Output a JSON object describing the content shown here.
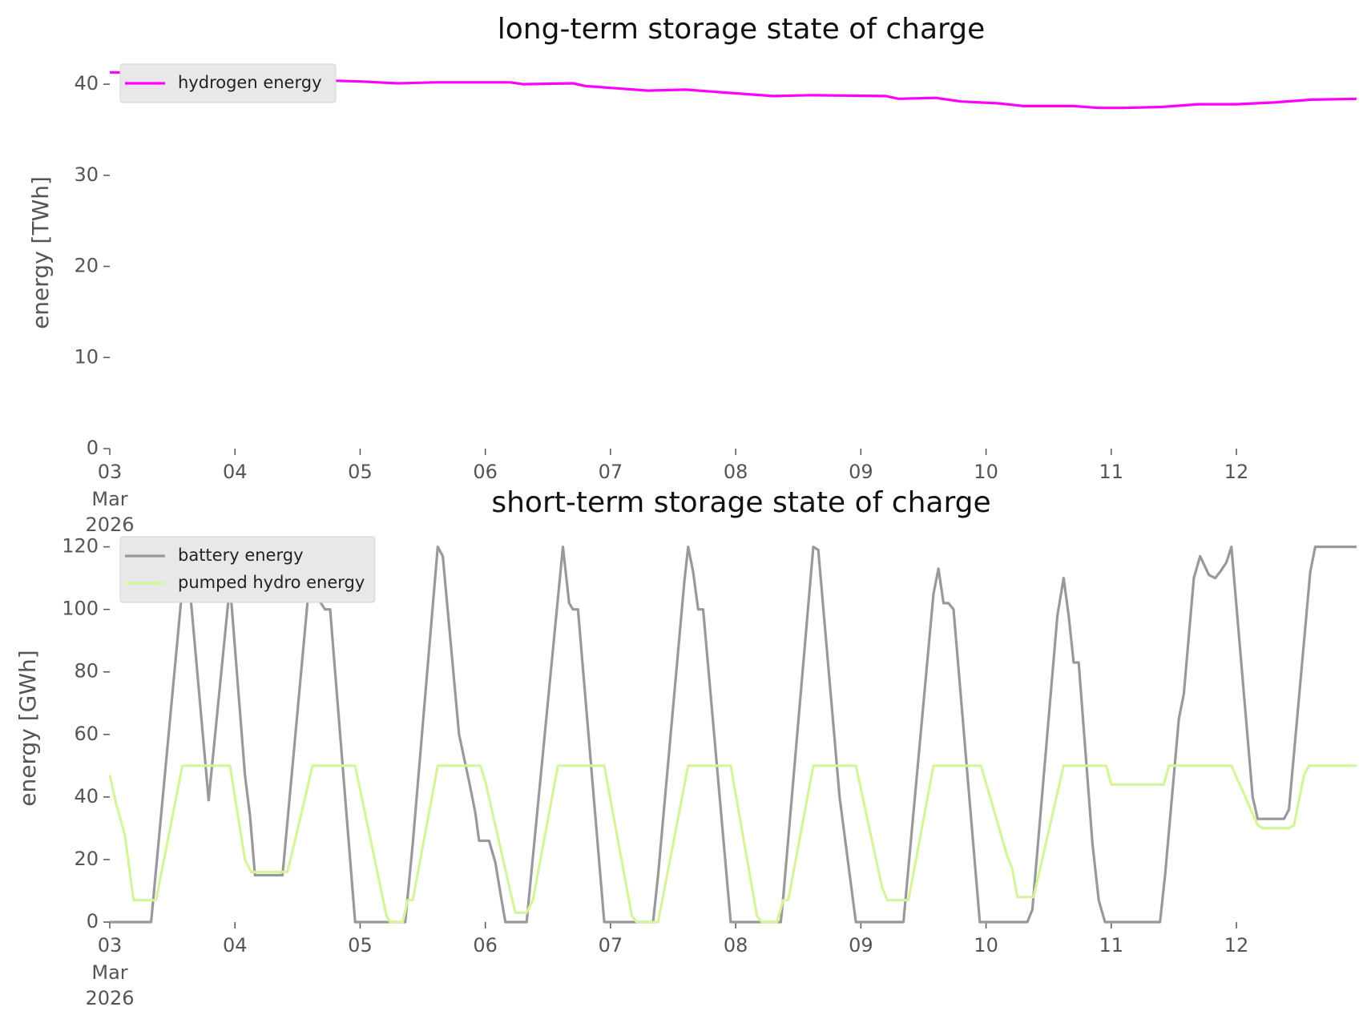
{
  "chart_data": [
    {
      "type": "line",
      "title": "long-term storage state of charge",
      "ylabel": "energy [TWh]",
      "xlim": [
        3,
        12.96
      ],
      "ylim": [
        0,
        43
      ],
      "yticks": [
        0,
        10,
        20,
        30,
        40
      ],
      "xticks": [
        {
          "value": 3,
          "label": "03"
        },
        {
          "value": 4,
          "label": "04"
        },
        {
          "value": 5,
          "label": "05"
        },
        {
          "value": 6,
          "label": "06"
        },
        {
          "value": 7,
          "label": "07"
        },
        {
          "value": 8,
          "label": "08"
        },
        {
          "value": 9,
          "label": "09"
        },
        {
          "value": 10,
          "label": "10"
        },
        {
          "value": 11,
          "label": "11"
        },
        {
          "value": 12,
          "label": "12"
        }
      ],
      "xtick_sublabel": [
        "Mar",
        "2026"
      ],
      "legend": "upper left",
      "grid": false,
      "series": [
        {
          "name": "hydrogen energy",
          "color": "#ff00ff",
          "x": [
            3,
            3.5,
            4,
            4.5,
            5,
            5.3,
            5.6,
            6.2,
            6.3,
            6.7,
            6.8,
            7.1,
            7.3,
            7.6,
            8,
            8.3,
            8.6,
            9.2,
            9.3,
            9.6,
            9.8,
            10.1,
            10.3,
            10.7,
            10.9,
            11.1,
            11.4,
            11.7,
            12,
            12.3,
            12.6,
            12.96
          ],
          "values": [
            41.3,
            41.2,
            40.8,
            40.5,
            40.3,
            40.1,
            40.2,
            40.2,
            40.0,
            40.1,
            39.8,
            39.5,
            39.3,
            39.4,
            39.0,
            38.7,
            38.8,
            38.7,
            38.4,
            38.5,
            38.1,
            37.9,
            37.6,
            37.6,
            37.4,
            37.4,
            37.5,
            37.8,
            37.8,
            38.0,
            38.3,
            38.4
          ]
        }
      ]
    },
    {
      "type": "line",
      "title": "short-term storage state of charge",
      "ylabel": "energy [GWh]",
      "xlim": [
        3,
        12.96
      ],
      "ylim": [
        0,
        124
      ],
      "yticks": [
        0,
        20,
        40,
        60,
        80,
        100,
        120
      ],
      "xticks": [
        {
          "value": 3,
          "label": "03"
        },
        {
          "value": 4,
          "label": "04"
        },
        {
          "value": 5,
          "label": "05"
        },
        {
          "value": 6,
          "label": "06"
        },
        {
          "value": 7,
          "label": "07"
        },
        {
          "value": 8,
          "label": "08"
        },
        {
          "value": 9,
          "label": "09"
        },
        {
          "value": 10,
          "label": "10"
        },
        {
          "value": 11,
          "label": "11"
        },
        {
          "value": 12,
          "label": "12"
        }
      ],
      "xtick_sublabel": [
        "Mar",
        "2026"
      ],
      "legend": "upper left",
      "grid": false,
      "series": [
        {
          "name": "battery energy",
          "color": "#999999",
          "x": [
            3,
            3.33,
            3.61,
            3.79,
            3.96,
            4.08,
            4.12,
            4.16,
            4.38,
            4.62,
            4.67,
            4.72,
            4.76,
            4.96,
            5.36,
            5.42,
            5.62,
            5.66,
            5.79,
            5.87,
            5.92,
            5.95,
            6.03,
            6.08,
            6.13,
            6.16,
            6.33,
            6.62,
            6.67,
            6.7,
            6.74,
            6.95,
            7.34,
            7.38,
            7.59,
            7.62,
            7.66,
            7.7,
            7.74,
            7.96,
            8.36,
            8.38,
            8.62,
            8.66,
            8.83,
            8.96,
            9.34,
            9.58,
            9.62,
            9.66,
            9.7,
            9.74,
            9.95,
            10.33,
            10.37,
            10.57,
            10.62,
            10.66,
            10.7,
            10.74,
            10.85,
            10.9,
            10.95,
            11.39,
            11.43,
            11.54,
            11.58,
            11.66,
            11.71,
            11.78,
            11.83,
            11.87,
            11.92,
            11.96,
            12.13,
            12.17,
            12.38,
            12.42,
            12.59,
            12.63,
            12.96
          ],
          "values": [
            0,
            0,
            120,
            39,
            108,
            47,
            34,
            15,
            15,
            120,
            103,
            100,
            100,
            0,
            0,
            25,
            120,
            117,
            60,
            45,
            35,
            26,
            26,
            19,
            7,
            0,
            0,
            120,
            102,
            100,
            100,
            0,
            0,
            15,
            109,
            120,
            112,
            100,
            100,
            0,
            0,
            8,
            120,
            119,
            40,
            0,
            0,
            105,
            113,
            102,
            102,
            100,
            0,
            0,
            4,
            98,
            110,
            98,
            83,
            83,
            25,
            7,
            0,
            0,
            15,
            65,
            73,
            110,
            117,
            111,
            110,
            112,
            115,
            120,
            40,
            33,
            33,
            36,
            112,
            120,
            120
          ]
        },
        {
          "name": "pumped hydro energy",
          "color": "#d4f59a",
          "x": [
            3,
            3.05,
            3.12,
            3.19,
            3.37,
            3.58,
            3.96,
            4.08,
            4.13,
            4.42,
            4.62,
            4.96,
            5.21,
            5.24,
            5.34,
            5.38,
            5.42,
            5.62,
            5.96,
            6.0,
            6.21,
            6.24,
            6.33,
            6.38,
            6.58,
            6.95,
            7.17,
            7.21,
            7.38,
            7.62,
            7.96,
            8.17,
            8.21,
            8.33,
            8.38,
            8.42,
            8.62,
            8.96,
            9.17,
            9.21,
            9.38,
            9.58,
            9.96,
            10.17,
            10.21,
            10.25,
            10.38,
            10.62,
            10.96,
            11.0,
            11.42,
            11.46,
            11.96,
            12.17,
            12.21,
            12.42,
            12.46,
            12.54,
            12.58,
            12.96
          ],
          "values": [
            47,
            38,
            28,
            7,
            7,
            50,
            50,
            20,
            16,
            16,
            50,
            50,
            2,
            0,
            0,
            7,
            7,
            50,
            50,
            45,
            8,
            3,
            3,
            7,
            50,
            50,
            2,
            0,
            0,
            50,
            50,
            2,
            0,
            0,
            7,
            7,
            50,
            50,
            11,
            7,
            7,
            50,
            50,
            21,
            17,
            8,
            8,
            50,
            50,
            44,
            44,
            50,
            50,
            31,
            30,
            30,
            31,
            47,
            50,
            50
          ]
        }
      ]
    }
  ]
}
